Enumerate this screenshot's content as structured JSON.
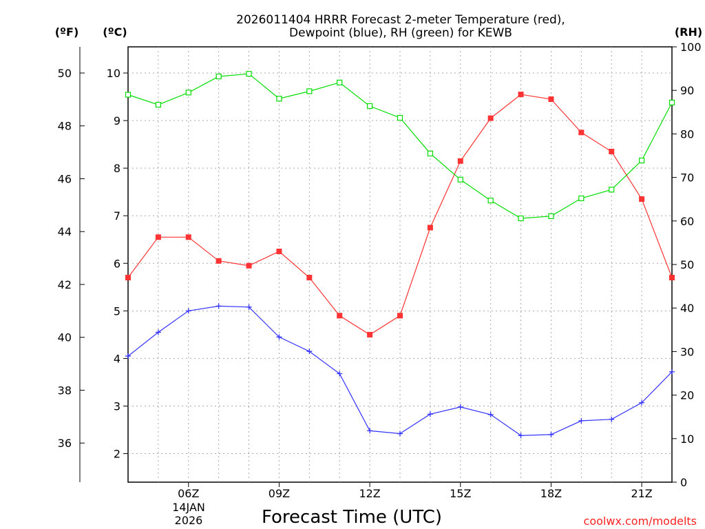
{
  "chart_data": {
    "type": "line",
    "title_line1": "2026011404 HRRR Forecast 2-meter Temperature (red),",
    "title_line2": "Dewpoint (blue), RH (green) for KEWB",
    "xlabel": "Forecast Time (UTC)",
    "credit": "coolwx.com/modelts",
    "units": {
      "fahrenheit": "(ºF)",
      "celsius": "(ºC)",
      "rh": "(RH)"
    },
    "date_label": [
      "14JAN",
      "2026"
    ],
    "x_hours_utc": [
      4,
      5,
      6,
      7,
      8,
      9,
      10,
      11,
      12,
      13,
      14,
      15,
      16,
      17,
      18,
      19,
      20,
      21,
      22
    ],
    "x_range": [
      4,
      22
    ],
    "x_ticks": [
      {
        "hour": 6,
        "label": "06Z"
      },
      {
        "hour": 9,
        "label": "09Z"
      },
      {
        "hour": 12,
        "label": "12Z"
      },
      {
        "hour": 15,
        "label": "15Z"
      },
      {
        "hour": 18,
        "label": "18Z"
      },
      {
        "hour": 21,
        "label": "21Z"
      }
    ],
    "celsius_axis": {
      "range": [
        1.4,
        10.55
      ],
      "ticks": [
        2,
        3,
        4,
        5,
        6,
        7,
        8,
        9,
        10
      ]
    },
    "fahrenheit_axis": {
      "ticks": [
        36,
        38,
        40,
        42,
        44,
        46,
        48,
        50
      ]
    },
    "rh_axis": {
      "range": [
        0,
        100
      ],
      "ticks": [
        0,
        10,
        20,
        30,
        40,
        50,
        60,
        70,
        80,
        90,
        100
      ]
    },
    "series": [
      {
        "name": "2-meter Temperature",
        "color": "#ff3333",
        "marker": "filled-square",
        "axis": "celsius",
        "values": [
          5.7,
          6.55,
          6.55,
          6.05,
          5.95,
          6.25,
          5.7,
          4.9,
          4.5,
          4.9,
          6.75,
          8.15,
          9.05,
          9.55,
          9.45,
          8.75,
          8.35,
          7.35,
          5.7
        ]
      },
      {
        "name": "Dewpoint",
        "color": "#3333ff",
        "marker": "plus",
        "axis": "celsius",
        "values": [
          4.05,
          4.55,
          5.0,
          5.1,
          5.08,
          4.45,
          4.15,
          3.68,
          2.48,
          2.42,
          2.83,
          2.98,
          2.82,
          2.38,
          2.4,
          2.69,
          2.72,
          3.07,
          3.72
        ]
      },
      {
        "name": "Relative Humidity",
        "color": "#00dd00",
        "marker": "open-square",
        "axis": "rh",
        "values": [
          89,
          86.7,
          89.5,
          93.2,
          93.8,
          88.1,
          89.8,
          91.8,
          86.4,
          83.7,
          75.5,
          69.5,
          64.7,
          60.6,
          61.1,
          65.2,
          67.2,
          73.9,
          87.2
        ]
      }
    ]
  }
}
